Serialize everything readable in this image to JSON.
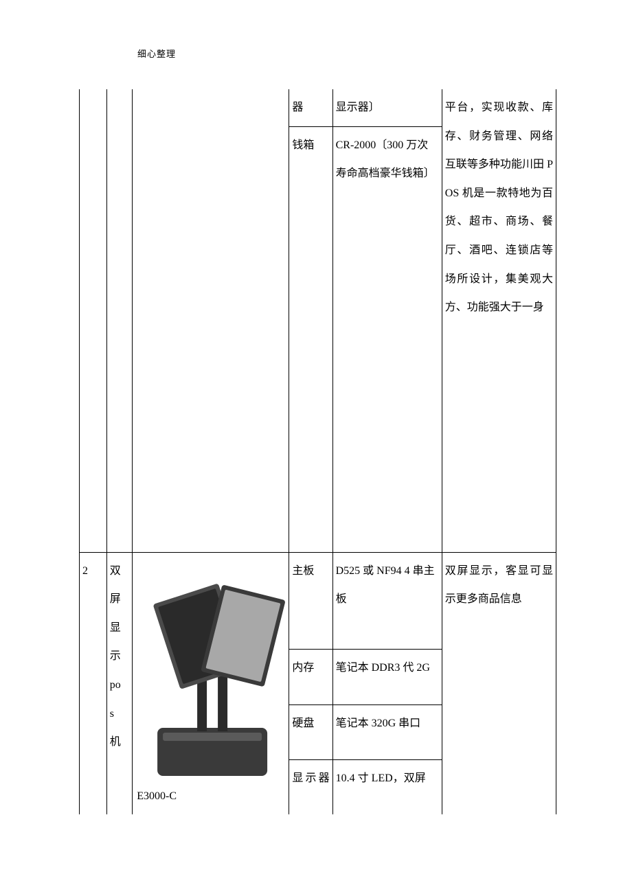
{
  "header_label": "细心整理",
  "row1": {
    "spec1_label": "器",
    "spec1_value": "显示器〕",
    "spec2_label": "钱箱",
    "spec2_value": "CR-2000〔300 万次寿命高档豪华钱箱〕",
    "desc": "平台，实现收款、库存、财务管理、网络互联等多种功能川田 POS 机是一款特地为百货、超市、商场、餐厅、酒吧、连锁店等场所设计，集美观大方、功能强大于一身"
  },
  "row2": {
    "index": "2",
    "name_chars": [
      "双",
      "屏",
      "显",
      "示",
      "po",
      "s",
      "机"
    ],
    "model": "E3000-C",
    "specs": [
      {
        "label": "主板",
        "value": "D525 或 NF94 4 串主板"
      },
      {
        "label": "内存",
        "value": "笔记本 DDR3 代 2G"
      },
      {
        "label": "硬盘",
        "value": "笔记本 320G 串口"
      },
      {
        "label": "显示器",
        "value": "10.4 寸 LED，双屏"
      }
    ],
    "desc": "双屏显示，客显可显示更多商品信息"
  },
  "colors": {
    "border": "#000000",
    "text": "#000000",
    "bg": "#ffffff",
    "device_dark": "#3a3a3a",
    "device_mid": "#5a5a5a",
    "device_light": "#9a9a9a"
  }
}
